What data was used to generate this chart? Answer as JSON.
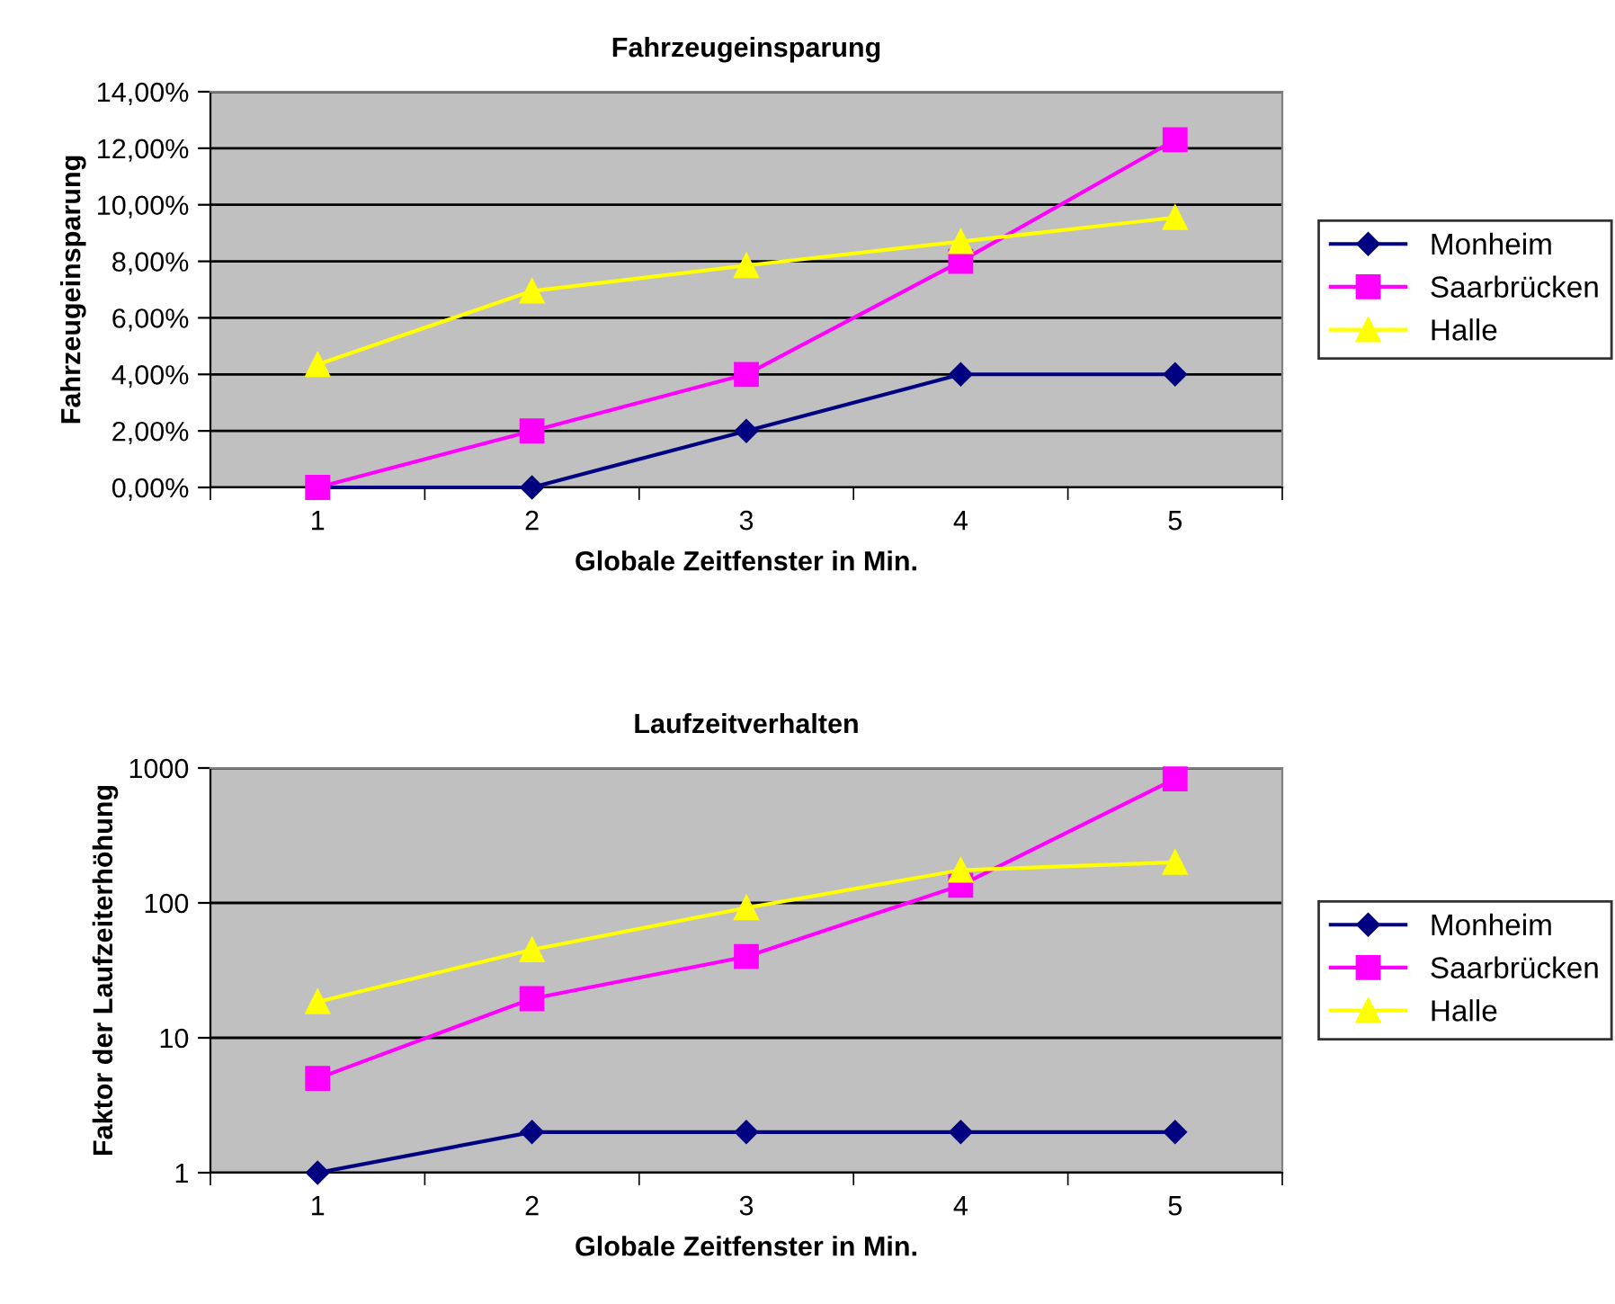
{
  "chart_data": [
    {
      "type": "line",
      "title": "Fahrzeugeinsparung",
      "xlabel": "Globale Zeitfenster in Min.",
      "ylabel": "Fahrzeugeinsparung",
      "categories": [
        "1",
        "2",
        "3",
        "4",
        "5"
      ],
      "series": [
        {
          "name": "Monheim",
          "color": "#000080",
          "marker": "diamond",
          "values": [
            0,
            0,
            2,
            4,
            4
          ]
        },
        {
          "name": "Saarbrücken",
          "color": "#ff00ff",
          "marker": "square",
          "values": [
            0,
            2,
            4,
            8,
            12.3
          ]
        },
        {
          "name": "Halle",
          "color": "#ffff00",
          "marker": "triangle",
          "values": [
            4.35,
            6.95,
            7.85,
            8.7,
            9.55
          ]
        }
      ],
      "ylim": [
        0,
        14
      ],
      "yticks": [
        {
          "value": 0,
          "label": "0,00%"
        },
        {
          "value": 2,
          "label": "2,00%"
        },
        {
          "value": 4,
          "label": "4,00%"
        },
        {
          "value": 6,
          "label": "6,00%"
        },
        {
          "value": 8,
          "label": "8,00%"
        },
        {
          "value": 10,
          "label": "10,00%"
        },
        {
          "value": 12,
          "label": "12,00%"
        },
        {
          "value": 14,
          "label": "14,00%"
        }
      ],
      "grid": "y",
      "legend": "right",
      "line_style": "solid"
    },
    {
      "type": "line",
      "title": "Laufzeitverhalten",
      "xlabel": "Globale Zeitfenster in Min.",
      "ylabel": "Faktor der Laufzeiterhöhung",
      "categories": [
        "1",
        "2",
        "3",
        "4",
        "5"
      ],
      "series": [
        {
          "name": "Monheim",
          "color": "#000080",
          "marker": "diamond",
          "values": [
            1,
            2,
            2,
            2,
            2
          ]
        },
        {
          "name": "Saarbrücken",
          "color": "#ff00ff",
          "marker": "square",
          "values": [
            5,
            19.5,
            40,
            135,
            830
          ]
        },
        {
          "name": "Halle",
          "color": "#ffff00",
          "marker": "triangle",
          "values": [
            18.5,
            45,
            92,
            175,
            200
          ]
        }
      ],
      "log": "y",
      "ylim": [
        1,
        1000
      ],
      "yticks": [
        1,
        10,
        100,
        1000
      ],
      "grid": "y",
      "legend": "right",
      "line_style": "solid"
    }
  ]
}
